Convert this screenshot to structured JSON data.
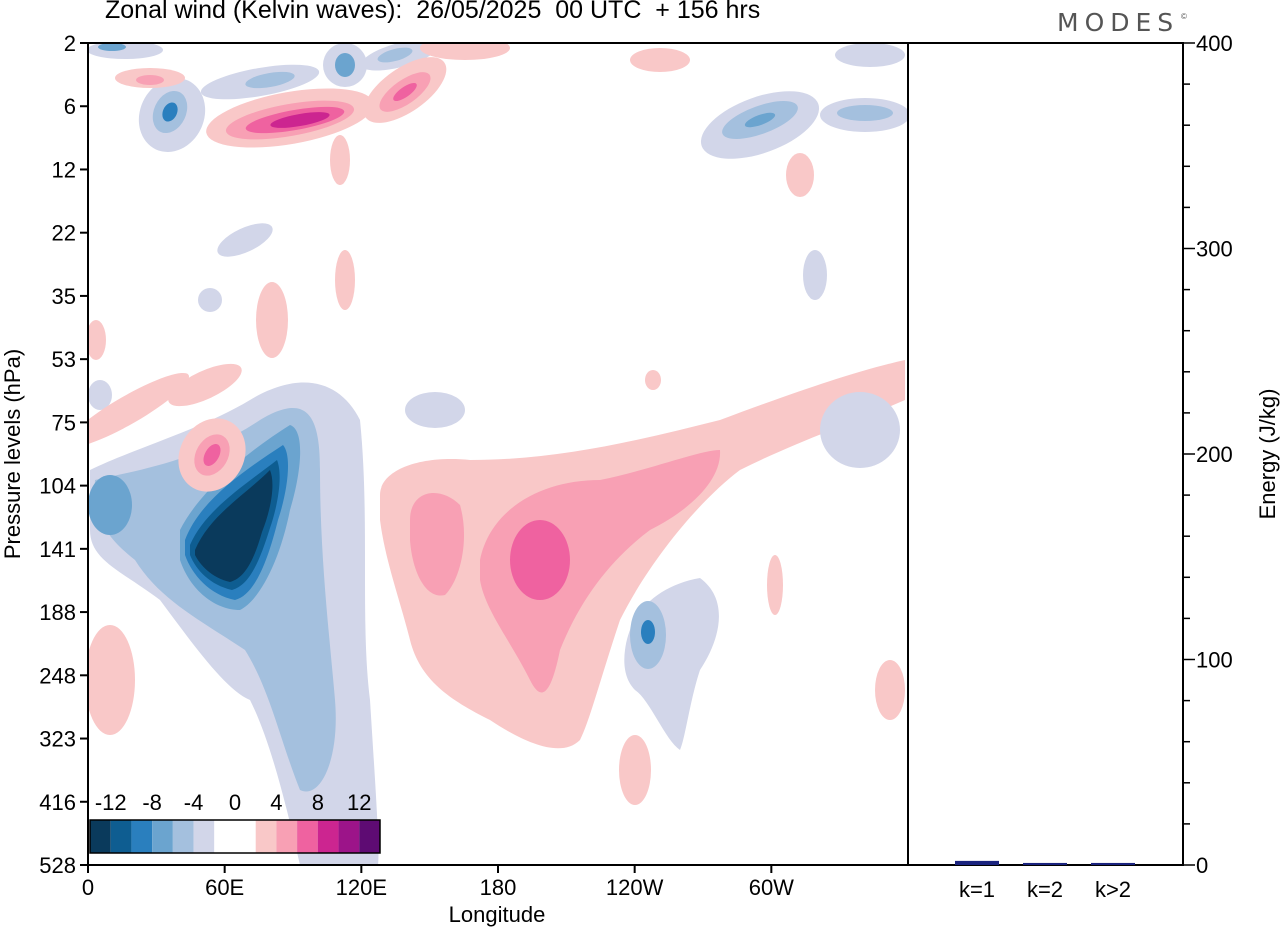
{
  "title": "Zonal wind (Kelvin waves):  26/05/2025  00 UTC  + 156 hrs",
  "brand": "MODES",
  "brand_mark": "©",
  "colors": {
    "scale": [
      "#0a3a5c",
      "#0e5d91",
      "#2a7fbe",
      "#6ba4cf",
      "#a4c0de",
      "#d2d6e9",
      "#ffffff",
      "#ffffff",
      "#f9c8c8",
      "#f8a0b4",
      "#ef62a0",
      "#cc2590",
      "#9c1489",
      "#5e0b73"
    ],
    "axis": "#000000",
    "bar": "#1a237e"
  },
  "chart_data": [
    {
      "type": "heatmap",
      "title": "Zonal wind (Kelvin waves):  26/05/2025  00 UTC  + 156 hrs",
      "xlabel": "Longitude",
      "ylabel": "Pressure levels (hPa)",
      "x_ticks": [
        "0",
        "60E",
        "120E",
        "180",
        "120W",
        "60W"
      ],
      "x_tick_values": [
        0,
        60,
        120,
        180,
        240,
        300
      ],
      "xlim": [
        0,
        360
      ],
      "y_ticks": [
        "2",
        "6",
        "12",
        "22",
        "35",
        "53",
        "75",
        "104",
        "141",
        "188",
        "248",
        "323",
        "416",
        "528"
      ],
      "y_scale": "log (pressure, downward)",
      "colorbar_labels": [
        "-12",
        "-8",
        "-4",
        "0",
        "4",
        "8",
        "12"
      ],
      "colorbar_levels": [
        -14,
        -12,
        -10,
        -8,
        -6,
        -4,
        -2,
        0,
        2,
        4,
        6,
        8,
        10,
        12,
        14
      ],
      "features": [
        {
          "x": 58,
          "level": 141,
          "value": -14
        },
        {
          "x": 8,
          "level": 104,
          "value": -6
        },
        {
          "x": 48,
          "level": 6,
          "value": -6
        },
        {
          "x": 295,
          "level": 6,
          "value": -5
        },
        {
          "x": 88,
          "level": 6,
          "value": 10
        },
        {
          "x": 140,
          "level": 4,
          "value": 6
        },
        {
          "x": 190,
          "level": 141,
          "value": 7
        },
        {
          "x": 155,
          "level": 141,
          "value": 5
        },
        {
          "x": 246,
          "level": 188,
          "value": -6
        },
        {
          "x": 55,
          "level": 75,
          "value": 6
        }
      ]
    },
    {
      "type": "bar",
      "categories": [
        "k=1",
        "k=2",
        "k>2"
      ],
      "values": [
        2,
        1,
        1
      ],
      "ylabel": "Energy (J/kg)",
      "ylim": [
        0,
        400
      ],
      "y_ticks": [
        "0",
        "100",
        "200",
        "300",
        "400"
      ]
    }
  ]
}
